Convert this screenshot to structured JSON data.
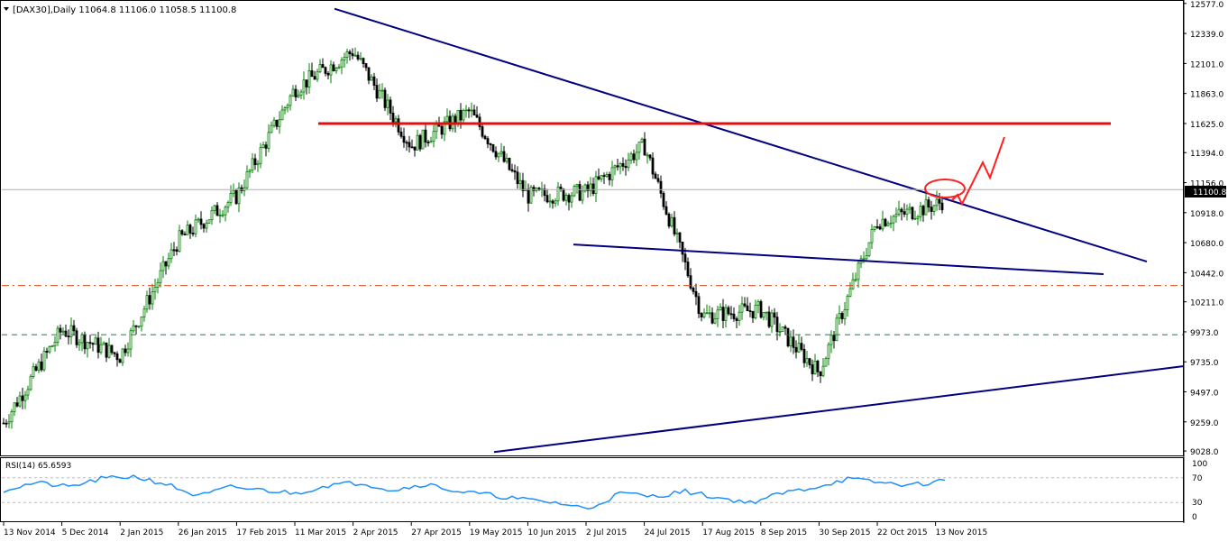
{
  "header": {
    "title": "[DAX30],Daily  11064.8 11106.0 11058.5 11100.8",
    "current_price_label": "11100.8"
  },
  "rsi_panel": {
    "label": "RSI(14) 65.6593",
    "levels": [
      "100",
      "70",
      "30",
      "0"
    ]
  },
  "colors": {
    "candle_up": "#008000",
    "candle_down": "#000000",
    "trendline": "#000080",
    "resistance": "#e01010",
    "dashed_red": "#e04a1f",
    "dashed_green": "#1e7a4a",
    "rsi_line": "#1e90ff",
    "grid": "#d0d0d0"
  },
  "chart_data": {
    "type": "line",
    "symbol": "DAX30",
    "timeframe": "Daily",
    "ohlc": {
      "open": 11064.8,
      "high": 11106.0,
      "low": 11058.5,
      "close": 11100.8
    },
    "price_ticks": [
      12577.0,
      12339.0,
      12101.0,
      11863.0,
      11625.0,
      11394.0,
      11156.0,
      10918.0,
      10680.0,
      10442.0,
      10211.0,
      9973.0,
      9735.0,
      9497.0,
      9259.0,
      9028.0
    ],
    "ylim": [
      9000,
      12590
    ],
    "x_ticks": [
      "13 Nov 2014",
      "5 Dec 2014",
      "2 Jan 2015",
      "26 Jan 2015",
      "17 Feb 2015",
      "11 Mar 2015",
      "2 Apr 2015",
      "27 Apr 2015",
      "19 May 2015",
      "10 Jun 2015",
      "2 Jul 2015",
      "24 Jul 2015",
      "17 Aug 2015",
      "8 Sep 2015",
      "30 Sep 2015",
      "22 Oct 2015",
      "13 Nov 2015"
    ],
    "close_series": [
      [
        "13 Nov 2014",
        9250
      ],
      [
        "5 Dec 2014",
        9990
      ],
      [
        "2 Jan 2015",
        9780
      ],
      [
        "26 Jan 2015",
        10700
      ],
      [
        "17 Feb 2015",
        11050
      ],
      [
        "11 Mar 2015",
        11900
      ],
      [
        "2 Apr 2015",
        12200
      ],
      [
        "27 Apr 2015",
        11450
      ],
      [
        "19 May 2015",
        11720
      ],
      [
        "10 Jun 2015",
        11050
      ],
      [
        "2 Jul 2015",
        11080
      ],
      [
        "24 Jul 2015",
        11450
      ],
      [
        "17 Aug 2015",
        10100
      ],
      [
        "8 Sep 2015",
        10150
      ],
      [
        "30 Sep 2015",
        9650
      ],
      [
        "22 Oct 2015",
        10850
      ],
      [
        "13 Nov 2015",
        10980
      ],
      [
        "13 Nov 2015",
        11100.8
      ]
    ],
    "lines": {
      "descending_resistance": [
        [
          "2 Apr 2015",
          12535
        ],
        [
          "13 Nov 2015",
          10530
        ]
      ],
      "horizontal_resistance": 11625,
      "lower_trendline": [
        [
          "2 Jul 2015",
          10665
        ],
        [
          "13 Nov 2015",
          10430
        ]
      ],
      "rising_support": [
        [
          "19 May 2015",
          9020
        ],
        [
          "13 Nov 2015",
          9700
        ]
      ],
      "dashed_red_level": 10340,
      "dashed_green_level": 9950
    },
    "rsi": {
      "period": 14,
      "value": 65.6593,
      "levels": [
        100,
        70,
        30,
        0
      ],
      "values": [
        50,
        62,
        55,
        68,
        72,
        60,
        40,
        55,
        50,
        45,
        58,
        62,
        50,
        60,
        48,
        42,
        35,
        30,
        20,
        45,
        40,
        48,
        38,
        30,
        45,
        55,
        68,
        62,
        58,
        66
      ]
    }
  }
}
